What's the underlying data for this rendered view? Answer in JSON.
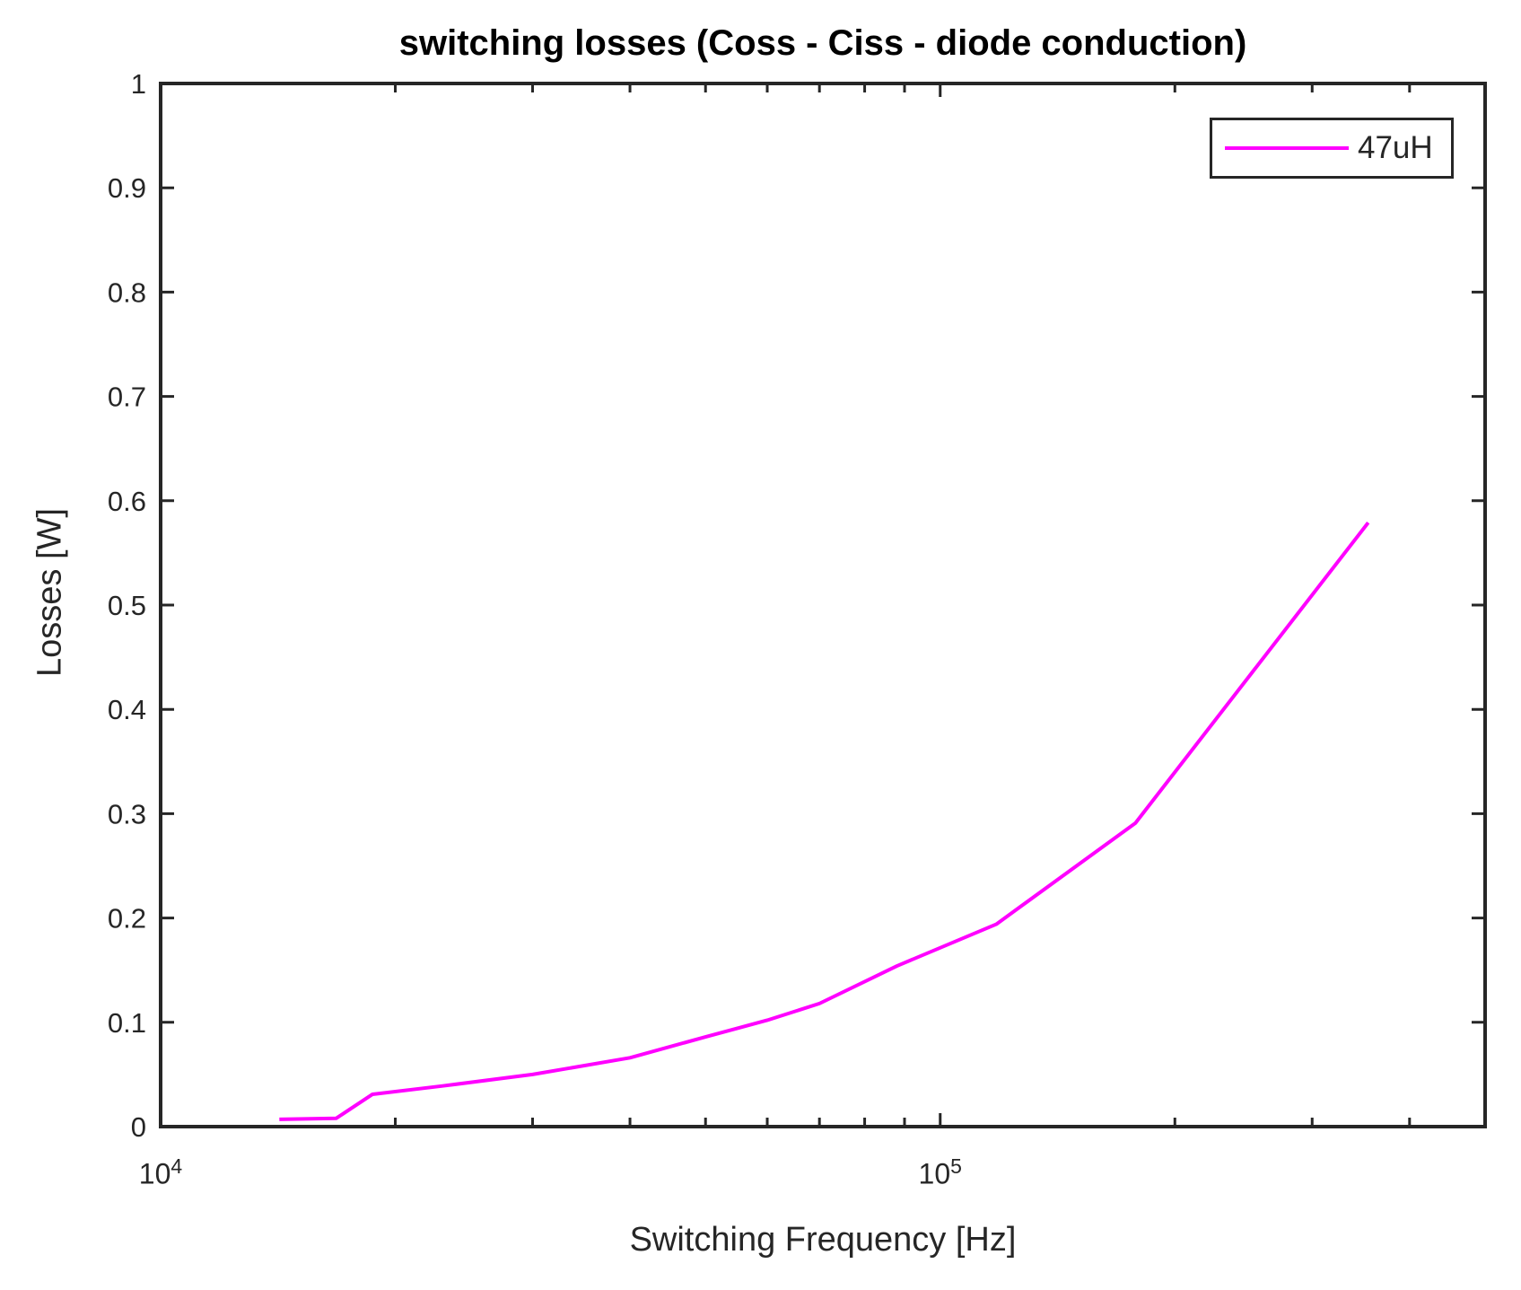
{
  "chart_data": {
    "type": "line",
    "title": "switching losses (Coss - Ciss - diode conduction)",
    "xlabel": "Switching Frequency [Hz]",
    "ylabel": "Losses [W]",
    "x_scale": "log",
    "xlim": [
      10000,
      500000
    ],
    "ylim": [
      0,
      1
    ],
    "grid": false,
    "legend_position": "northeast",
    "axis_color": "#262626",
    "background_color": "#FFFFFF",
    "series": [
      {
        "name": "47uH",
        "color": "#FF00FF",
        "x": [
          14200,
          16800,
          18700,
          23000,
          30000,
          40000,
          50000,
          60000,
          70000,
          88000,
          118000,
          178000,
          354000
        ],
        "y": [
          0.007,
          0.008,
          0.031,
          0.039,
          0.05,
          0.066,
          0.086,
          0.102,
          0.118,
          0.154,
          0.194,
          0.291,
          0.579
        ]
      }
    ],
    "y_ticks": [
      {
        "value": 0,
        "label": "0"
      },
      {
        "value": 0.1,
        "label": "0.1"
      },
      {
        "value": 0.2,
        "label": "0.2"
      },
      {
        "value": 0.3,
        "label": "0.3"
      },
      {
        "value": 0.4,
        "label": "0.4"
      },
      {
        "value": 0.5,
        "label": "0.5"
      },
      {
        "value": 0.6,
        "label": "0.6"
      },
      {
        "value": 0.7,
        "label": "0.7"
      },
      {
        "value": 0.8,
        "label": "0.8"
      },
      {
        "value": 0.9,
        "label": "0.9"
      },
      {
        "value": 1,
        "label": "1"
      }
    ],
    "x_ticks_major": [
      {
        "value": 10000,
        "base": "10",
        "exp": "4"
      },
      {
        "value": 100000,
        "base": "10",
        "exp": "5"
      }
    ],
    "x_ticks_minor": [
      20000,
      30000,
      40000,
      50000,
      60000,
      70000,
      80000,
      90000,
      200000,
      300000,
      400000
    ]
  }
}
